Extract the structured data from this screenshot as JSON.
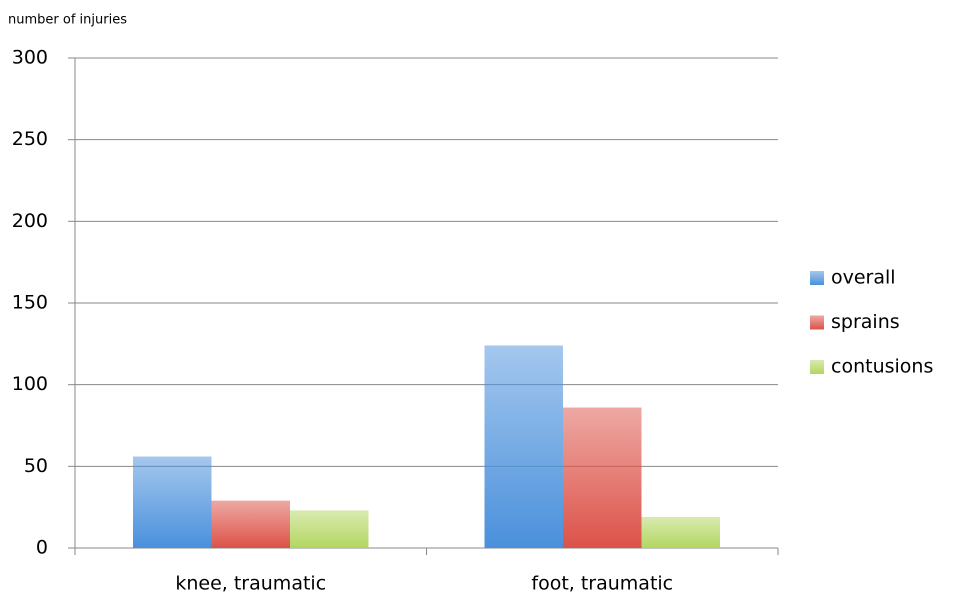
{
  "chart_data": {
    "type": "bar",
    "y_label": "number of injuries",
    "categories": [
      "knee, traumatic",
      "foot, traumatic"
    ],
    "series": [
      {
        "name": "overall",
        "color": "#4a90dc",
        "values": [
          56,
          124
        ]
      },
      {
        "name": "sprains",
        "color": "#dc5248",
        "values": [
          29,
          86
        ]
      },
      {
        "name": "contusions",
        "color": "#b2d660",
        "values": [
          23,
          19
        ]
      }
    ],
    "ylim": [
      0,
      300
    ],
    "yticks": [
      0,
      50,
      100,
      150,
      200,
      250,
      300
    ],
    "grid": true,
    "legend": "right"
  }
}
